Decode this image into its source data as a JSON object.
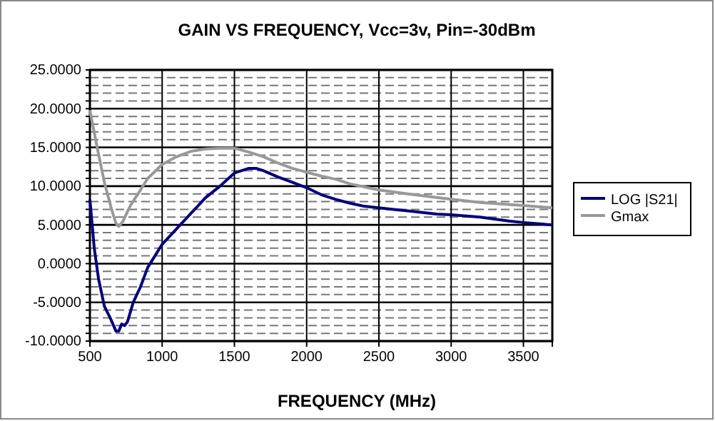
{
  "chart_data": {
    "type": "line",
    "title": "GAIN VS FREQUENCY, Vcc=3v, Pin=-30dBm",
    "xlabel": "FREQUENCY (MHz)",
    "xlim": [
      500,
      3700
    ],
    "xticks": [
      500,
      1000,
      1500,
      2000,
      2500,
      3000,
      3500
    ],
    "ylim": [
      -10,
      25
    ],
    "yticks": [
      {
        "value": -10,
        "label": "-10.0000"
      },
      {
        "value": -9,
        "label": null
      },
      {
        "value": -8,
        "label": null
      },
      {
        "value": -7,
        "label": null
      },
      {
        "value": -6,
        "label": null
      },
      {
        "value": -5,
        "label": "-5.0000"
      },
      {
        "value": -4,
        "label": null
      },
      {
        "value": -3,
        "label": null
      },
      {
        "value": -2,
        "label": null
      },
      {
        "value": -1,
        "label": null
      },
      {
        "value": 0,
        "label": "0.0000"
      },
      {
        "value": 1,
        "label": null
      },
      {
        "value": 2,
        "label": null
      },
      {
        "value": 3,
        "label": null
      },
      {
        "value": 4,
        "label": null
      },
      {
        "value": 5,
        "label": "5.0000"
      },
      {
        "value": 6,
        "label": null
      },
      {
        "value": 7,
        "label": null
      },
      {
        "value": 8,
        "label": null
      },
      {
        "value": 9,
        "label": null
      },
      {
        "value": 10,
        "label": "10.0000"
      },
      {
        "value": 11,
        "label": null
      },
      {
        "value": 12,
        "label": null
      },
      {
        "value": 13,
        "label": null
      },
      {
        "value": 14,
        "label": null
      },
      {
        "value": 15,
        "label": "15.0000"
      },
      {
        "value": 16,
        "label": null
      },
      {
        "value": 17,
        "label": null
      },
      {
        "value": 18,
        "label": null
      },
      {
        "value": 19,
        "label": null
      },
      {
        "value": 20,
        "label": "20.0000"
      },
      {
        "value": 21,
        "label": null
      },
      {
        "value": 22,
        "label": null
      },
      {
        "value": 23,
        "label": null
      },
      {
        "value": 24,
        "label": null
      },
      {
        "value": 25,
        "label": "25.0000"
      }
    ],
    "grid": true,
    "legend": "right",
    "marker": "none",
    "line_style": "solid",
    "series": [
      {
        "name": "LOG |S21|",
        "color": "#000080",
        "x": [
          500,
          530,
          560,
          600,
          640,
          680,
          700,
          720,
          740,
          760,
          800,
          850,
          900,
          950,
          1000,
          1100,
          1200,
          1300,
          1400,
          1500,
          1600,
          1650,
          1700,
          1800,
          1900,
          2000,
          2100,
          2200,
          2300,
          2400,
          2500,
          2600,
          2700,
          2800,
          2900,
          3000,
          3200,
          3400,
          3500,
          3700
        ],
        "values": [
          8.3,
          2,
          -2,
          -5.5,
          -7,
          -8.7,
          -8.7,
          -7.8,
          -8,
          -7.5,
          -5,
          -3,
          -0.5,
          1,
          2.5,
          4.5,
          6.5,
          8.5,
          10,
          11.7,
          12.3,
          12.3,
          12,
          11.2,
          10.5,
          9.8,
          8.9,
          8.3,
          7.8,
          7.4,
          7.2,
          7,
          6.8,
          6.6,
          6.4,
          6.3,
          6,
          5.5,
          5.3,
          5
        ]
      },
      {
        "name": "Gmax",
        "color": "#999999",
        "x": [
          500,
          550,
          600,
          650,
          680,
          700,
          730,
          780,
          850,
          900,
          1000,
          1100,
          1200,
          1300,
          1400,
          1500,
          1600,
          1700,
          1800,
          1900,
          2000,
          2100,
          2200,
          2300,
          2400,
          2500,
          2700,
          3000,
          3200,
          3500,
          3700
        ],
        "values": [
          19.8,
          15,
          10.5,
          7,
          5.2,
          4.8,
          5.5,
          7.5,
          9.5,
          11,
          12.8,
          13.8,
          14.5,
          14.8,
          14.9,
          14.9,
          14.4,
          13.8,
          13,
          12.3,
          11.8,
          11.3,
          10.9,
          10.3,
          9.9,
          9.5,
          9,
          8.3,
          7.9,
          7.5,
          7.2
        ]
      }
    ]
  }
}
